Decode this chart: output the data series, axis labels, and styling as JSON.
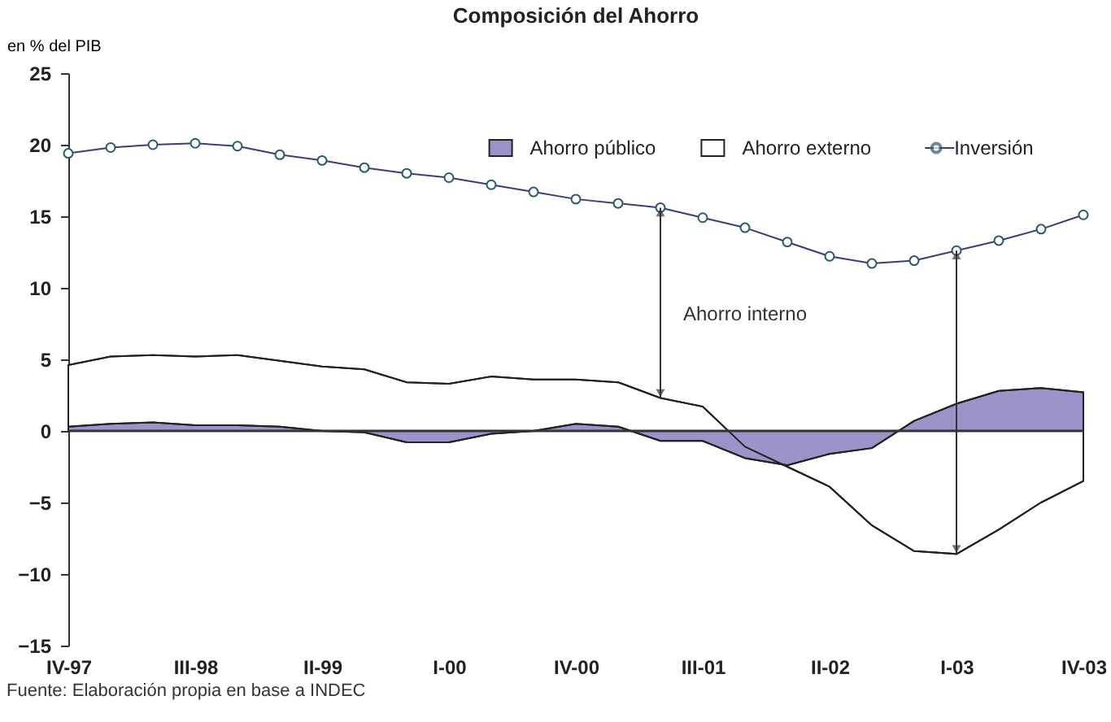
{
  "chart_data": {
    "type": "area",
    "title": "Composición del Ahorro",
    "ylabel": "en % del PIB",
    "categories": [
      "IV-97",
      null,
      null,
      "III-98",
      null,
      null,
      "II-99",
      null,
      null,
      "I-00",
      null,
      null,
      "IV-00",
      null,
      null,
      "III-01",
      null,
      null,
      "II-02",
      null,
      null,
      "I-03",
      null,
      null,
      "IV-03"
    ],
    "series": [
      {
        "name": "Ahorro público",
        "color": "#9b94c8",
        "values": [
          0.3,
          0.5,
          0.6,
          0.4,
          0.4,
          0.3,
          0,
          -0.1,
          -0.8,
          -0.8,
          -0.2,
          0,
          0.5,
          0.3,
          -0.7,
          -0.7,
          -1.9,
          -2.4,
          -1.6,
          -1.2,
          0.7,
          1.9,
          2.8,
          3.0,
          2.7
        ]
      },
      {
        "name": "Ahorro externo",
        "color": "#ffffff",
        "values": [
          4.6,
          5.2,
          5.3,
          5.2,
          5.3,
          4.9,
          4.5,
          4.3,
          3.4,
          3.3,
          3.8,
          3.6,
          3.6,
          3.4,
          2.3,
          1.7,
          -1.1,
          -2.5,
          -3.9,
          -6.6,
          -8.4,
          -8.6,
          -6.9,
          -5.0,
          -3.5
        ]
      },
      {
        "name": "Inversión",
        "type": "line",
        "color": "#3c3c78",
        "marker": "circle",
        "values": [
          19.4,
          19.8,
          20.0,
          20.1,
          19.9,
          19.3,
          18.9,
          18.4,
          18.0,
          17.7,
          17.2,
          16.7,
          16.2,
          15.9,
          15.6,
          14.9,
          14.2,
          13.2,
          12.2,
          11.7,
          11.9,
          12.6,
          13.3,
          14.1,
          15.1
        ]
      }
    ],
    "ylim": [
      -15,
      25
    ],
    "yticks": [
      -15,
      -10,
      -5,
      0,
      5,
      10,
      15,
      20,
      25
    ],
    "ref_lines": [
      {
        "axis": "y",
        "value": 0
      }
    ],
    "legend": "top right",
    "annotations": [
      "Ahorro interno",
      "Fuente: Elaboración propia en base a INDEC"
    ]
  }
}
